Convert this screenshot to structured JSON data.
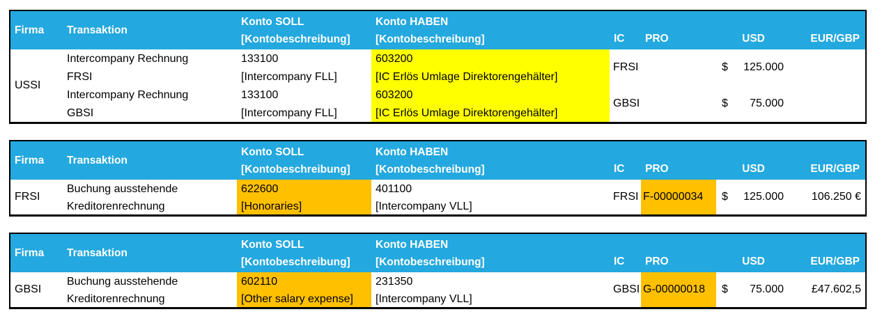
{
  "colors": {
    "header_bg": "#23A8DF",
    "highlight_yellow": "#FFFF00",
    "highlight_orange": "#FFC000",
    "border_c": "#000000",
    "header_text": "#FFFFFF",
    "body_text": "#000000"
  },
  "headers": {
    "firma": "Firma",
    "transaktion": "Transaktion",
    "konto_soll_line1": "Konto SOLL",
    "konto_soll_line2": "[Kontobeschreibung]",
    "konto_haben_line1": "Konto HABEN",
    "konto_haben_line2": "[Kontobeschreibung]",
    "ic": "IC",
    "pro": "PRO",
    "usd": "USD",
    "eur_gbp": "EUR/GBP"
  },
  "table1": {
    "firma": "USSI",
    "transaktion": [
      "Intercompany Rechnung",
      "FRSI",
      "Intercompany Rechnung",
      "GBSI"
    ],
    "konto_soll": [
      "133100",
      "[Intercompany FLL]",
      "133100",
      "[Intercompany FLL]"
    ],
    "konto_haben": [
      "603200",
      "[IC Erlös Umlage Direktorengehälter]",
      "603200",
      "[IC Erlös Umlage Direktorengehälter]"
    ],
    "entries": [
      {
        "ic": "FRSI",
        "pro": "",
        "usd_symbol": "$",
        "usd_value": "125.000",
        "eur_gbp": ""
      },
      {
        "ic": "GBSI",
        "pro": "",
        "usd_symbol": "$",
        "usd_value": "75.000",
        "eur_gbp": ""
      }
    ]
  },
  "table2": {
    "firma": "FRSI",
    "transaktion": [
      "Buchung ausstehende",
      "Kreditorenrechnung"
    ],
    "konto_soll": [
      "622600",
      "[Honoraries]"
    ],
    "konto_haben": [
      "401100",
      "[Intercompany VLL]"
    ],
    "ic": "FRSI",
    "pro": "F-00000034",
    "usd_symbol": "$",
    "usd_value": "125.000",
    "eur_gbp": "106.250 €"
  },
  "table3": {
    "firma": "GBSI",
    "transaktion": [
      "Buchung ausstehende",
      "Kreditorenrechnung"
    ],
    "konto_soll": [
      "602110",
      "[Other salary expense]"
    ],
    "konto_haben": [
      "231350",
      "[Intercompany VLL]"
    ],
    "ic": "GBSI",
    "pro": "G-00000018",
    "usd_symbol": "$",
    "usd_value": "75.000",
    "eur_gbp": "£47.602,5"
  }
}
